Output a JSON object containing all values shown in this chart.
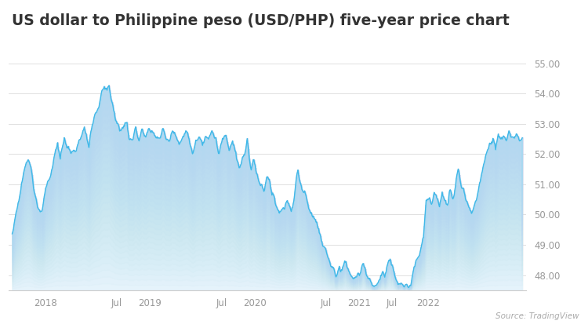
{
  "title": "US dollar to Philippine peso (USD/PHP) five-year price chart",
  "source_text": "Source: TradingView",
  "ylim": [
    47.5,
    55.3
  ],
  "yticks": [
    48.0,
    49.0,
    50.0,
    51.0,
    52.0,
    53.0,
    54.0,
    55.0
  ],
  "line_color": "#40b8e8",
  "fill_color_strong": "#a8d8f0",
  "fill_color_weak": "#e8f5fc",
  "bg_color": "#ffffff",
  "title_fontsize": 13.5,
  "grid_color": "#e0e0e0",
  "waypoints": [
    [
      0,
      49.35
    ],
    [
      10,
      50.4
    ],
    [
      18,
      51.5
    ],
    [
      25,
      51.8
    ],
    [
      30,
      51.3
    ],
    [
      38,
      50.3
    ],
    [
      45,
      50.2
    ],
    [
      50,
      50.8
    ],
    [
      60,
      51.5
    ],
    [
      68,
      52.5
    ],
    [
      72,
      51.8
    ],
    [
      78,
      52.6
    ],
    [
      82,
      52.2
    ],
    [
      88,
      52.0
    ],
    [
      95,
      52.0
    ],
    [
      100,
      52.5
    ],
    [
      108,
      52.8
    ],
    [
      115,
      52.3
    ],
    [
      120,
      53.1
    ],
    [
      128,
      53.5
    ],
    [
      133,
      53.9
    ],
    [
      138,
      54.2
    ],
    [
      142,
      54.1
    ],
    [
      145,
      54.3
    ],
    [
      148,
      53.8
    ],
    [
      152,
      53.5
    ],
    [
      157,
      53.0
    ],
    [
      162,
      52.8
    ],
    [
      168,
      52.8
    ],
    [
      172,
      53.0
    ],
    [
      175,
      52.6
    ],
    [
      180,
      52.5
    ],
    [
      185,
      52.8
    ],
    [
      190,
      52.5
    ],
    [
      195,
      52.8
    ],
    [
      200,
      52.5
    ],
    [
      205,
      53.0
    ],
    [
      210,
      52.7
    ],
    [
      215,
      52.5
    ],
    [
      220,
      52.5
    ],
    [
      225,
      52.8
    ],
    [
      230,
      52.6
    ],
    [
      235,
      52.5
    ],
    [
      240,
      52.8
    ],
    [
      245,
      52.6
    ],
    [
      250,
      52.3
    ],
    [
      255,
      52.6
    ],
    [
      260,
      52.8
    ],
    [
      265,
      52.5
    ],
    [
      270,
      52.0
    ],
    [
      275,
      52.5
    ],
    [
      280,
      52.6
    ],
    [
      285,
      52.4
    ],
    [
      290,
      52.6
    ],
    [
      295,
      52.5
    ],
    [
      300,
      52.7
    ],
    [
      305,
      52.5
    ],
    [
      310,
      52.0
    ],
    [
      315,
      52.5
    ],
    [
      320,
      52.5
    ],
    [
      325,
      52.1
    ],
    [
      330,
      52.5
    ],
    [
      335,
      52.0
    ],
    [
      340,
      51.5
    ],
    [
      345,
      51.8
    ],
    [
      348,
      52.0
    ],
    [
      352,
      52.5
    ],
    [
      355,
      51.8
    ],
    [
      358,
      51.5
    ],
    [
      362,
      51.8
    ],
    [
      366,
      51.4
    ],
    [
      372,
      51.0
    ],
    [
      378,
      50.8
    ],
    [
      382,
      51.3
    ],
    [
      386,
      51.0
    ],
    [
      390,
      50.6
    ],
    [
      395,
      50.3
    ],
    [
      400,
      50.0
    ],
    [
      408,
      50.2
    ],
    [
      414,
      50.5
    ],
    [
      418,
      50.2
    ],
    [
      422,
      50.5
    ],
    [
      428,
      51.5
    ],
    [
      432,
      51.0
    ],
    [
      436,
      50.8
    ],
    [
      440,
      50.5
    ],
    [
      445,
      50.2
    ],
    [
      450,
      50.0
    ],
    [
      455,
      49.8
    ],
    [
      460,
      49.5
    ],
    [
      465,
      49.0
    ],
    [
      470,
      48.8
    ],
    [
      475,
      48.5
    ],
    [
      480,
      48.2
    ],
    [
      485,
      48.0
    ],
    [
      490,
      48.3
    ],
    [
      492,
      48.1
    ],
    [
      495,
      48.15
    ],
    [
      500,
      48.4
    ],
    [
      504,
      48.2
    ],
    [
      508,
      47.95
    ],
    [
      512,
      47.9
    ],
    [
      516,
      47.95
    ],
    [
      520,
      48.1
    ],
    [
      525,
      48.35
    ],
    [
      528,
      48.2
    ],
    [
      533,
      47.9
    ],
    [
      538,
      47.75
    ],
    [
      542,
      47.7
    ],
    [
      546,
      47.65
    ],
    [
      550,
      47.85
    ],
    [
      555,
      48.1
    ],
    [
      558,
      47.9
    ],
    [
      562,
      48.2
    ],
    [
      566,
      48.5
    ],
    [
      570,
      48.35
    ],
    [
      574,
      47.9
    ],
    [
      578,
      47.75
    ],
    [
      582,
      47.7
    ],
    [
      586,
      47.68
    ],
    [
      590,
      47.65
    ],
    [
      594,
      47.63
    ],
    [
      597,
      47.65
    ],
    [
      601,
      48.2
    ],
    [
      606,
      48.5
    ],
    [
      611,
      48.8
    ],
    [
      616,
      49.3
    ],
    [
      620,
      50.5
    ],
    [
      624,
      50.5
    ],
    [
      628,
      50.3
    ],
    [
      632,
      50.7
    ],
    [
      636,
      50.5
    ],
    [
      640,
      50.3
    ],
    [
      644,
      50.8
    ],
    [
      648,
      50.5
    ],
    [
      652,
      50.3
    ],
    [
      656,
      50.8
    ],
    [
      660,
      50.5
    ],
    [
      664,
      51.0
    ],
    [
      668,
      51.5
    ],
    [
      672,
      51.0
    ],
    [
      676,
      50.8
    ],
    [
      680,
      50.5
    ],
    [
      684,
      50.3
    ],
    [
      688,
      50.0
    ],
    [
      692,
      50.3
    ],
    [
      696,
      50.6
    ],
    [
      700,
      51.0
    ],
    [
      705,
      51.5
    ],
    [
      710,
      52.0
    ],
    [
      715,
      52.3
    ],
    [
      720,
      52.5
    ],
    [
      724,
      52.2
    ],
    [
      728,
      52.6
    ],
    [
      732,
      52.5
    ],
    [
      736,
      52.6
    ],
    [
      740,
      52.5
    ],
    [
      744,
      52.7
    ],
    [
      748,
      52.6
    ],
    [
      752,
      52.5
    ],
    [
      756,
      52.6
    ],
    [
      760,
      52.5
    ],
    [
      764,
      52.5
    ]
  ],
  "x_tick_positions_norm": [
    0.065,
    0.205,
    0.27,
    0.41,
    0.475,
    0.615,
    0.68,
    0.745,
    0.815,
    0.94
  ],
  "x_tick_labels": [
    "2018",
    "Jul",
    "2019",
    "Jul",
    "2020",
    "Jul",
    "2021",
    "Jul",
    "2022",
    ""
  ],
  "n_points": 765
}
